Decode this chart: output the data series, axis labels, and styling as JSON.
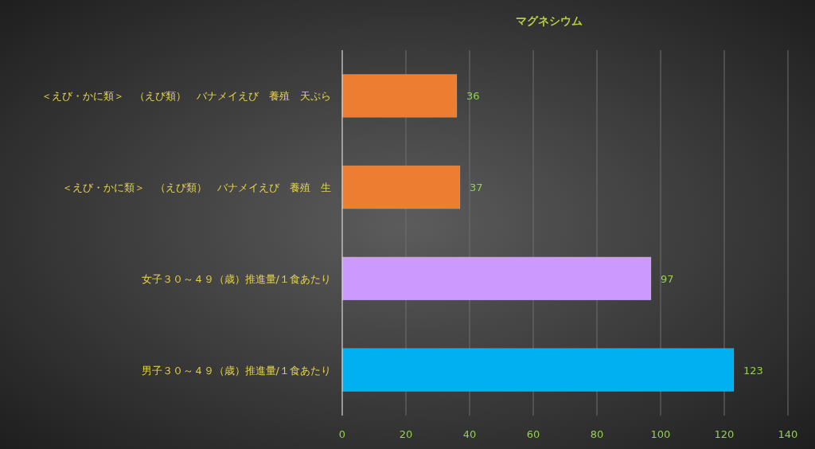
{
  "chart_data": {
    "type": "bar",
    "orientation": "horizontal",
    "title": "マグネシウム",
    "categories": [
      "＜えび・かに類＞　（えび類）　バナメイえび　養殖　天ぷら",
      "＜えび・かに類＞　（えび類）　バナメイえび　養殖　生",
      "女子３０～４９（歳）推進量/１食あたり",
      "男子３０～４９（歳）推進量/１食あたり"
    ],
    "values": [
      36,
      37,
      97,
      123
    ],
    "colors": [
      "#ed7d31",
      "#ed7d31",
      "#cc99ff",
      "#00b0f0"
    ],
    "xlim": [
      0,
      140
    ],
    "xticks": [
      0,
      20,
      40,
      60,
      80,
      100,
      120,
      140
    ],
    "grid": "x",
    "data_labels": true
  }
}
